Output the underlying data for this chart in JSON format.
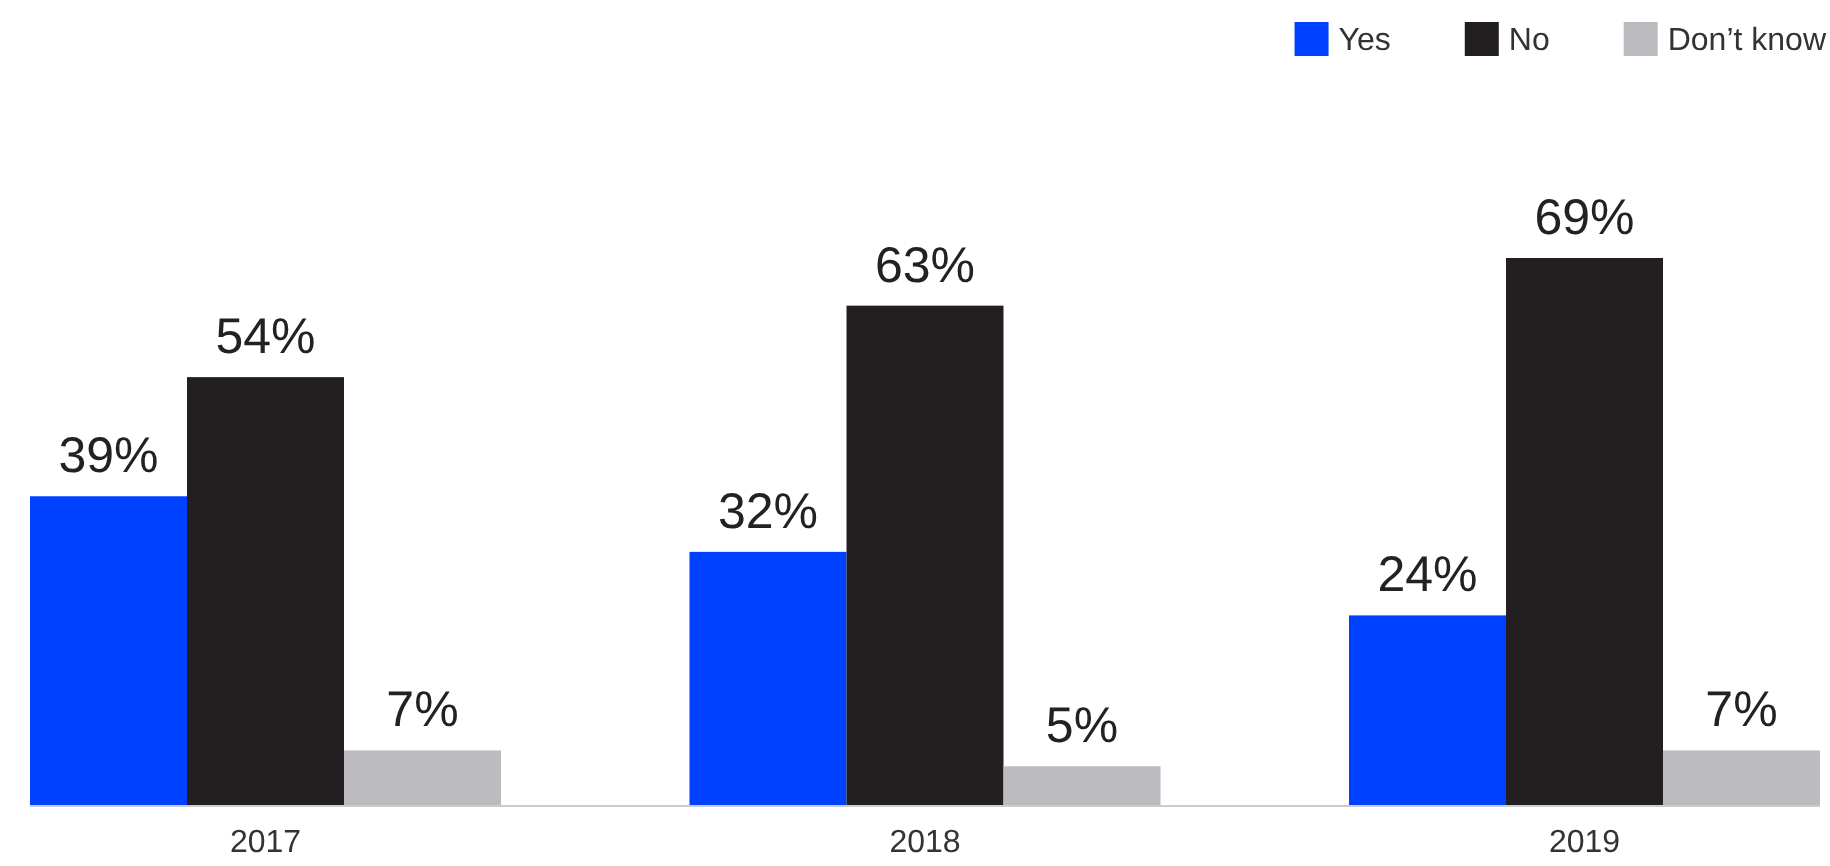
{
  "chart_data": {
    "type": "bar",
    "categories": [
      "2017",
      "2018",
      "2019"
    ],
    "series": [
      {
        "name": "Yes",
        "color": "#0040ff",
        "values": [
          39,
          32,
          24
        ],
        "value_labels": [
          "39%",
          "32%",
          "24%"
        ]
      },
      {
        "name": "No",
        "color": "#231f20",
        "values": [
          54,
          63,
          69
        ],
        "value_labels": [
          "54%",
          "63%",
          "69%"
        ]
      },
      {
        "name": "Don’t know",
        "color": "#bcbcc0",
        "values": [
          7,
          5,
          7
        ],
        "value_labels": [
          "7%",
          "5%",
          "7%"
        ]
      }
    ],
    "legend": "top right"
  }
}
